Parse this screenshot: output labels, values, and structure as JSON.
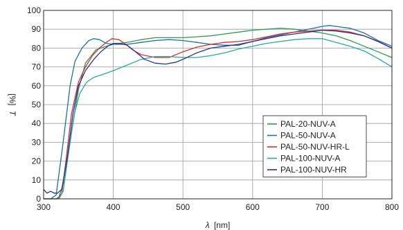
{
  "chart_data": {
    "type": "line",
    "xlabel_symbol": "λ",
    "xlabel_unit": "[nm]",
    "ylabel_symbol": "T",
    "ylabel_unit": "[%]",
    "xlim": [
      300,
      800
    ],
    "ylim": [
      0,
      100
    ],
    "x_ticks": [
      300,
      400,
      500,
      600,
      700,
      800
    ],
    "y_ticks": [
      0,
      10,
      20,
      30,
      40,
      50,
      60,
      70,
      80,
      90,
      100
    ],
    "grid": true,
    "legend_position": "lower-right",
    "series": [
      {
        "name": "PAL-20-NUV-A",
        "color": "#2e9a52",
        "points": [
          [
            300,
            0
          ],
          [
            318,
            0
          ],
          [
            322,
            1
          ],
          [
            330,
            10
          ],
          [
            340,
            35
          ],
          [
            350,
            58
          ],
          [
            360,
            72
          ],
          [
            375,
            79
          ],
          [
            390,
            81
          ],
          [
            400,
            82
          ],
          [
            420,
            83
          ],
          [
            440,
            84.5
          ],
          [
            460,
            85.5
          ],
          [
            480,
            85.5
          ],
          [
            500,
            85.5
          ],
          [
            520,
            86
          ],
          [
            540,
            86.5
          ],
          [
            560,
            87.5
          ],
          [
            580,
            88.5
          ],
          [
            600,
            89.5
          ],
          [
            620,
            90
          ],
          [
            640,
            90.5
          ],
          [
            660,
            90
          ],
          [
            680,
            89
          ],
          [
            700,
            88
          ],
          [
            720,
            86.5
          ],
          [
            740,
            84
          ],
          [
            760,
            81
          ],
          [
            780,
            78
          ],
          [
            800,
            75
          ]
        ]
      },
      {
        "name": "PAL-50-NUV-A",
        "color": "#1f6fa3",
        "points": [
          [
            300,
            0
          ],
          [
            310,
            0
          ],
          [
            318,
            2
          ],
          [
            328,
            30
          ],
          [
            338,
            60
          ],
          [
            345,
            73
          ],
          [
            355,
            80
          ],
          [
            365,
            84
          ],
          [
            372,
            85
          ],
          [
            380,
            84.5
          ],
          [
            390,
            82.5
          ],
          [
            400,
            82
          ],
          [
            420,
            82
          ],
          [
            440,
            83
          ],
          [
            460,
            84
          ],
          [
            480,
            84.5
          ],
          [
            500,
            84
          ],
          [
            520,
            83
          ],
          [
            540,
            82
          ],
          [
            560,
            81.5
          ],
          [
            580,
            81.5
          ],
          [
            600,
            83.5
          ],
          [
            620,
            85.5
          ],
          [
            640,
            87
          ],
          [
            660,
            88.5
          ],
          [
            680,
            90
          ],
          [
            700,
            91.5
          ],
          [
            710,
            92
          ],
          [
            720,
            91.5
          ],
          [
            740,
            90.5
          ],
          [
            760,
            88
          ],
          [
            780,
            84
          ],
          [
            800,
            81
          ]
        ]
      },
      {
        "name": "PAL-50-NUV-HR-L",
        "color": "#d33030",
        "points": [
          [
            300,
            0
          ],
          [
            320,
            0
          ],
          [
            326,
            3
          ],
          [
            332,
            20
          ],
          [
            340,
            45
          ],
          [
            350,
            62
          ],
          [
            360,
            70
          ],
          [
            370,
            76
          ],
          [
            380,
            80
          ],
          [
            390,
            83
          ],
          [
            398,
            85
          ],
          [
            408,
            84.5
          ],
          [
            418,
            82
          ],
          [
            428,
            79
          ],
          [
            440,
            76.5
          ],
          [
            460,
            75
          ],
          [
            480,
            75
          ],
          [
            500,
            78
          ],
          [
            520,
            80.5
          ],
          [
            540,
            82
          ],
          [
            560,
            83
          ],
          [
            580,
            83.5
          ],
          [
            600,
            84.5
          ],
          [
            620,
            86
          ],
          [
            640,
            87.5
          ],
          [
            660,
            88.5
          ],
          [
            680,
            89
          ],
          [
            700,
            89.5
          ],
          [
            720,
            89.5
          ],
          [
            740,
            88.5
          ],
          [
            760,
            86.5
          ],
          [
            780,
            83.5
          ],
          [
            800,
            80
          ]
        ]
      },
      {
        "name": "PAL-100-NUV-A",
        "color": "#27aa99",
        "points": [
          [
            300,
            0
          ],
          [
            322,
            0
          ],
          [
            328,
            4
          ],
          [
            336,
            25
          ],
          [
            344,
            45
          ],
          [
            352,
            56
          ],
          [
            362,
            62
          ],
          [
            372,
            64.5
          ],
          [
            385,
            66
          ],
          [
            400,
            68
          ],
          [
            420,
            71
          ],
          [
            440,
            74
          ],
          [
            460,
            75.5
          ],
          [
            480,
            75.5
          ],
          [
            500,
            75
          ],
          [
            520,
            75
          ],
          [
            540,
            76
          ],
          [
            560,
            77.5
          ],
          [
            580,
            79.5
          ],
          [
            600,
            81
          ],
          [
            620,
            82.5
          ],
          [
            640,
            83.5
          ],
          [
            660,
            84.5
          ],
          [
            680,
            85
          ],
          [
            700,
            85
          ],
          [
            720,
            83
          ],
          [
            740,
            81
          ],
          [
            760,
            78.5
          ],
          [
            780,
            74.5
          ],
          [
            800,
            70
          ]
        ]
      },
      {
        "name": "PAL-100-NUV-HR",
        "color": "#2e2f8f",
        "points": [
          [
            300,
            5
          ],
          [
            305,
            3
          ],
          [
            310,
            4
          ],
          [
            315,
            3
          ],
          [
            320,
            3
          ],
          [
            326,
            5
          ],
          [
            334,
            22
          ],
          [
            342,
            45
          ],
          [
            350,
            60
          ],
          [
            360,
            68
          ],
          [
            372,
            74
          ],
          [
            382,
            78
          ],
          [
            392,
            81
          ],
          [
            400,
            82.5
          ],
          [
            410,
            82.5
          ],
          [
            420,
            81.5
          ],
          [
            432,
            78
          ],
          [
            445,
            74
          ],
          [
            460,
            72
          ],
          [
            475,
            71.5
          ],
          [
            490,
            72.5
          ],
          [
            500,
            74
          ],
          [
            520,
            77.5
          ],
          [
            540,
            80
          ],
          [
            560,
            81
          ],
          [
            580,
            82
          ],
          [
            600,
            83.5
          ],
          [
            620,
            85
          ],
          [
            640,
            86.5
          ],
          [
            660,
            87.5
          ],
          [
            680,
            88.5
          ],
          [
            700,
            89.5
          ],
          [
            720,
            89
          ],
          [
            740,
            88
          ],
          [
            760,
            86.5
          ],
          [
            780,
            83.5
          ],
          [
            800,
            80
          ]
        ]
      }
    ]
  }
}
